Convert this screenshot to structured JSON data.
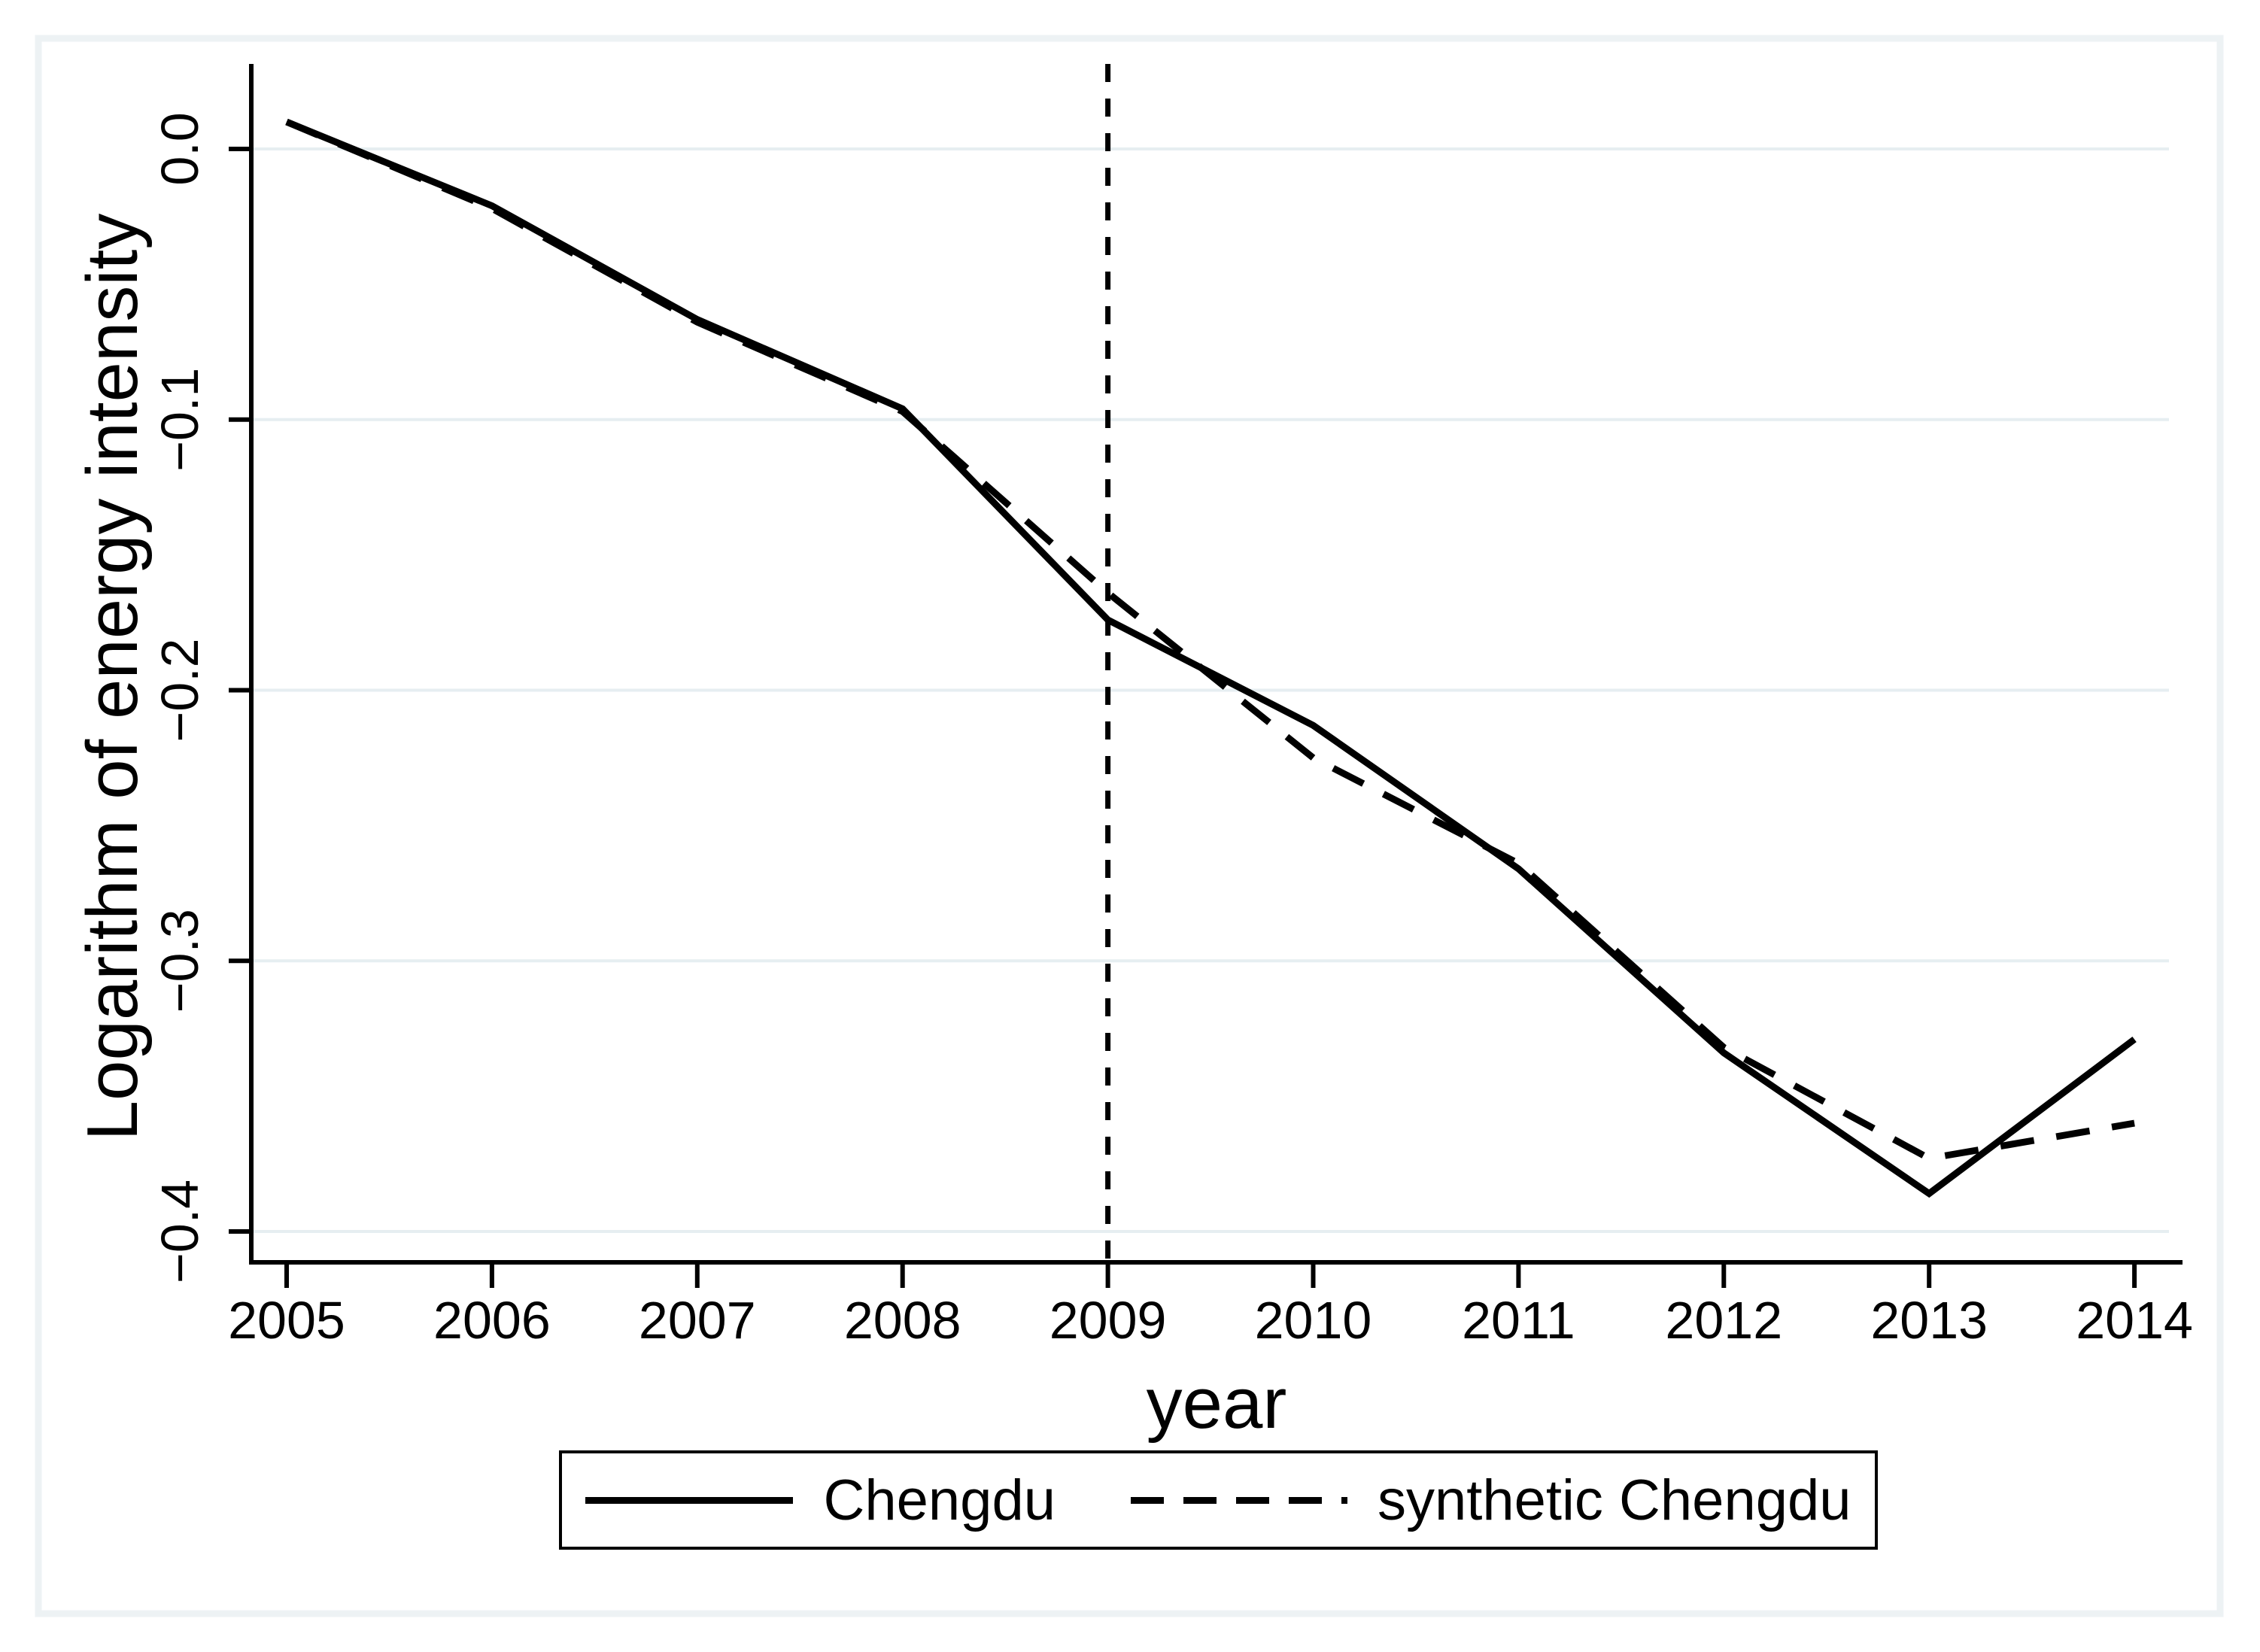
{
  "chart_data": {
    "type": "line",
    "title": "",
    "xlabel": "year",
    "ylabel": "Logarithm of energy intensity",
    "x": [
      2005,
      2006,
      2007,
      2008,
      2009,
      2010,
      2011,
      2012,
      2013,
      2014
    ],
    "x_tick_labels": [
      "2005",
      "2006",
      "2007",
      "2008",
      "2009",
      "2010",
      "2011",
      "2012",
      "2013",
      "2014"
    ],
    "y_ticks": [
      {
        "value": 0.0,
        "label": "0.0"
      },
      {
        "value": -0.1,
        "label": "−0.1"
      },
      {
        "value": -0.2,
        "label": "−0.2"
      },
      {
        "value": -0.3,
        "label": "−0.3"
      },
      {
        "value": -0.4,
        "label": "−0.4"
      }
    ],
    "ylim": [
      -0.411,
      0.031
    ],
    "grid": true,
    "legend_position": "bottom-center",
    "series": [
      {
        "name": "Chengdu",
        "line_style": "solid",
        "values": [
          0.01,
          -0.021,
          -0.063,
          -0.096,
          -0.174,
          -0.213,
          -0.266,
          -0.334,
          -0.386,
          -0.329
        ]
      },
      {
        "name": "synthetic Chengdu",
        "line_style": "dashed",
        "values": [
          0.01,
          -0.022,
          -0.064,
          -0.097,
          -0.164,
          -0.225,
          -0.264,
          -0.332,
          -0.373,
          -0.36
        ]
      }
    ],
    "reference_line": {
      "axis": "x",
      "value": 2009,
      "style": "dashed"
    }
  },
  "legend": {
    "entries": [
      {
        "label": "Chengdu",
        "line_style": "solid"
      },
      {
        "label": "synthetic Chengdu",
        "line_style": "dashed"
      }
    ]
  },
  "colors": {
    "line": "#000000",
    "grid": "#e6eef1",
    "frame": "#edf2f4",
    "background": "#ffffff"
  }
}
